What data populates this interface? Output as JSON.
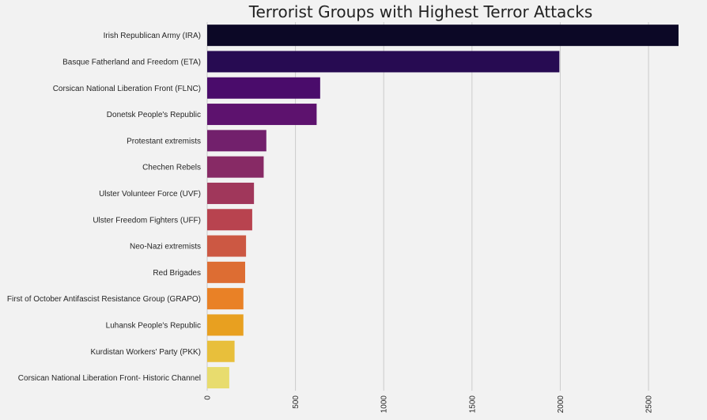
{
  "chart_data": {
    "type": "bar",
    "orientation": "horizontal",
    "title": "Terrorist Groups with Highest Terror Attacks",
    "xlabel": "",
    "ylabel": "",
    "categories": [
      "Irish Republican Army (IRA)",
      "Basque Fatherland and Freedom (ETA)",
      "Corsican National Liberation Front (FLNC)",
      "Donetsk People's Republic",
      "Protestant extremists",
      "Chechen Rebels",
      "Ulster Volunteer Force (UVF)",
      "Ulster Freedom Fighters (UFF)",
      "Neo-Nazi extremists",
      "Red Brigades",
      "First of October Antifascist Resistance Group (GRAPO)",
      "Luhansk People's Republic",
      "Kurdistan Workers' Party (PKK)",
      "Corsican National Liberation Front- Historic Channel"
    ],
    "values": [
      2670,
      1995,
      640,
      620,
      335,
      320,
      265,
      255,
      220,
      215,
      205,
      205,
      155,
      125
    ],
    "colors": [
      "#0c0826",
      "#270b52",
      "#4a0c6b",
      "#5d126e",
      "#72206c",
      "#872a65",
      "#a0375b",
      "#b8434f",
      "#cc5843",
      "#dd6d33",
      "#e98126",
      "#e8a020",
      "#e8bf3b",
      "#e8dc6e"
    ],
    "xlim": [
      0,
      2670
    ],
    "xticks": [
      "0",
      "500",
      "1000",
      "1500",
      "2000",
      "2500"
    ],
    "grid": true,
    "legend": "none"
  }
}
